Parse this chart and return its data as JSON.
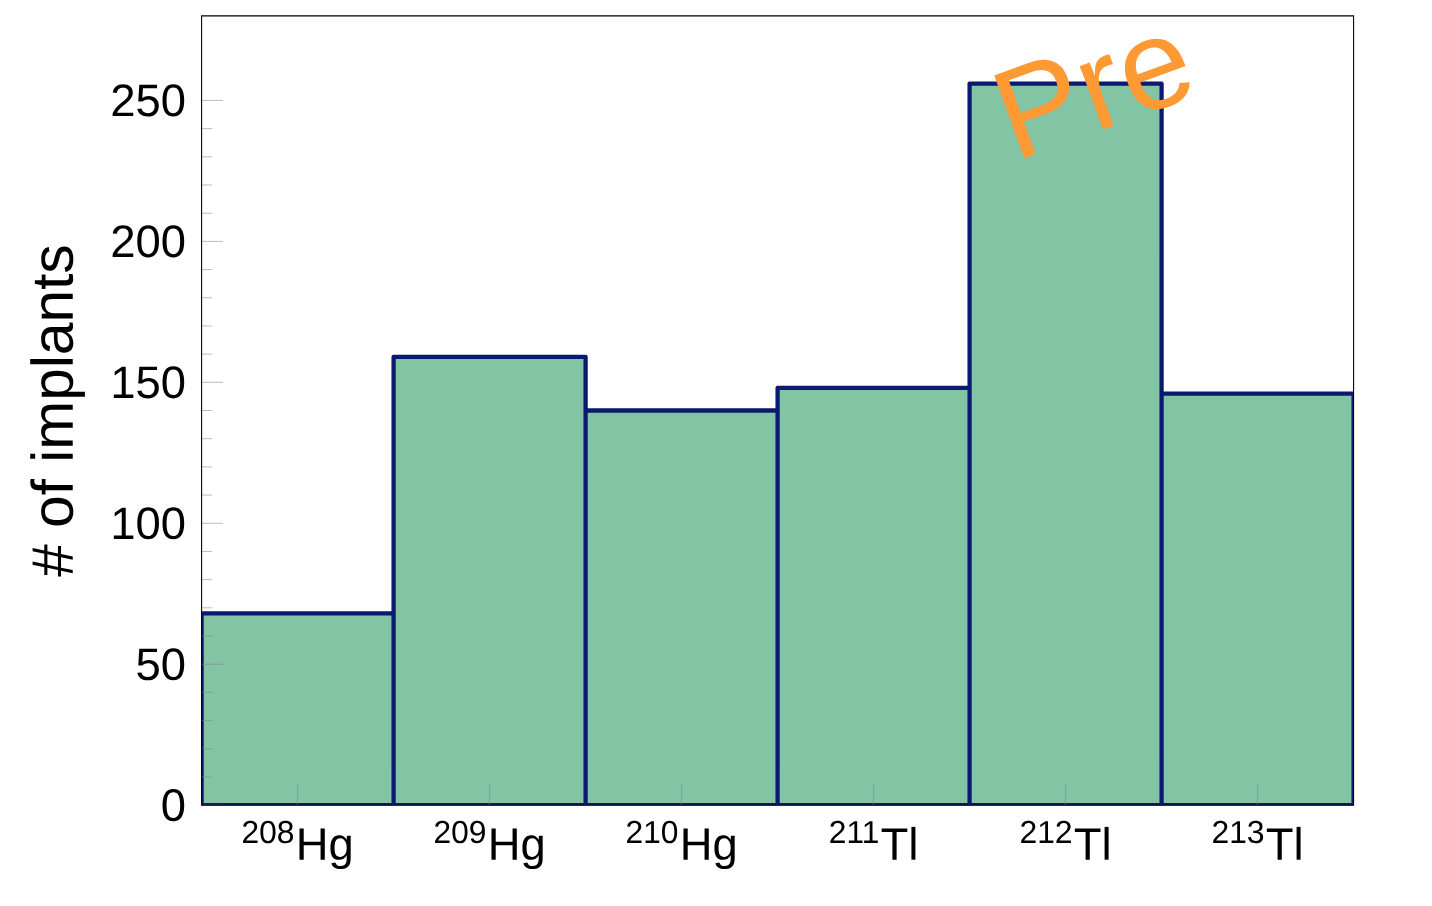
{
  "chart_data": {
    "type": "bar",
    "ylabel": "# of implants",
    "categories": [
      "$^{208}$Hg",
      "$^{209}$Hg",
      "$^{210}$Hg",
      "$^{211}$Tl",
      "$^{212}$Tl",
      "$^{213}$Tl"
    ],
    "values": [
      68,
      159,
      140,
      148,
      256,
      146
    ],
    "color": "#82c4a4",
    "ylim": [
      0,
      280
    ],
    "yticks": [
      0,
      50,
      100,
      150,
      200,
      250
    ],
    "grid": false,
    "annotations": [
      "Pre"
    ]
  }
}
